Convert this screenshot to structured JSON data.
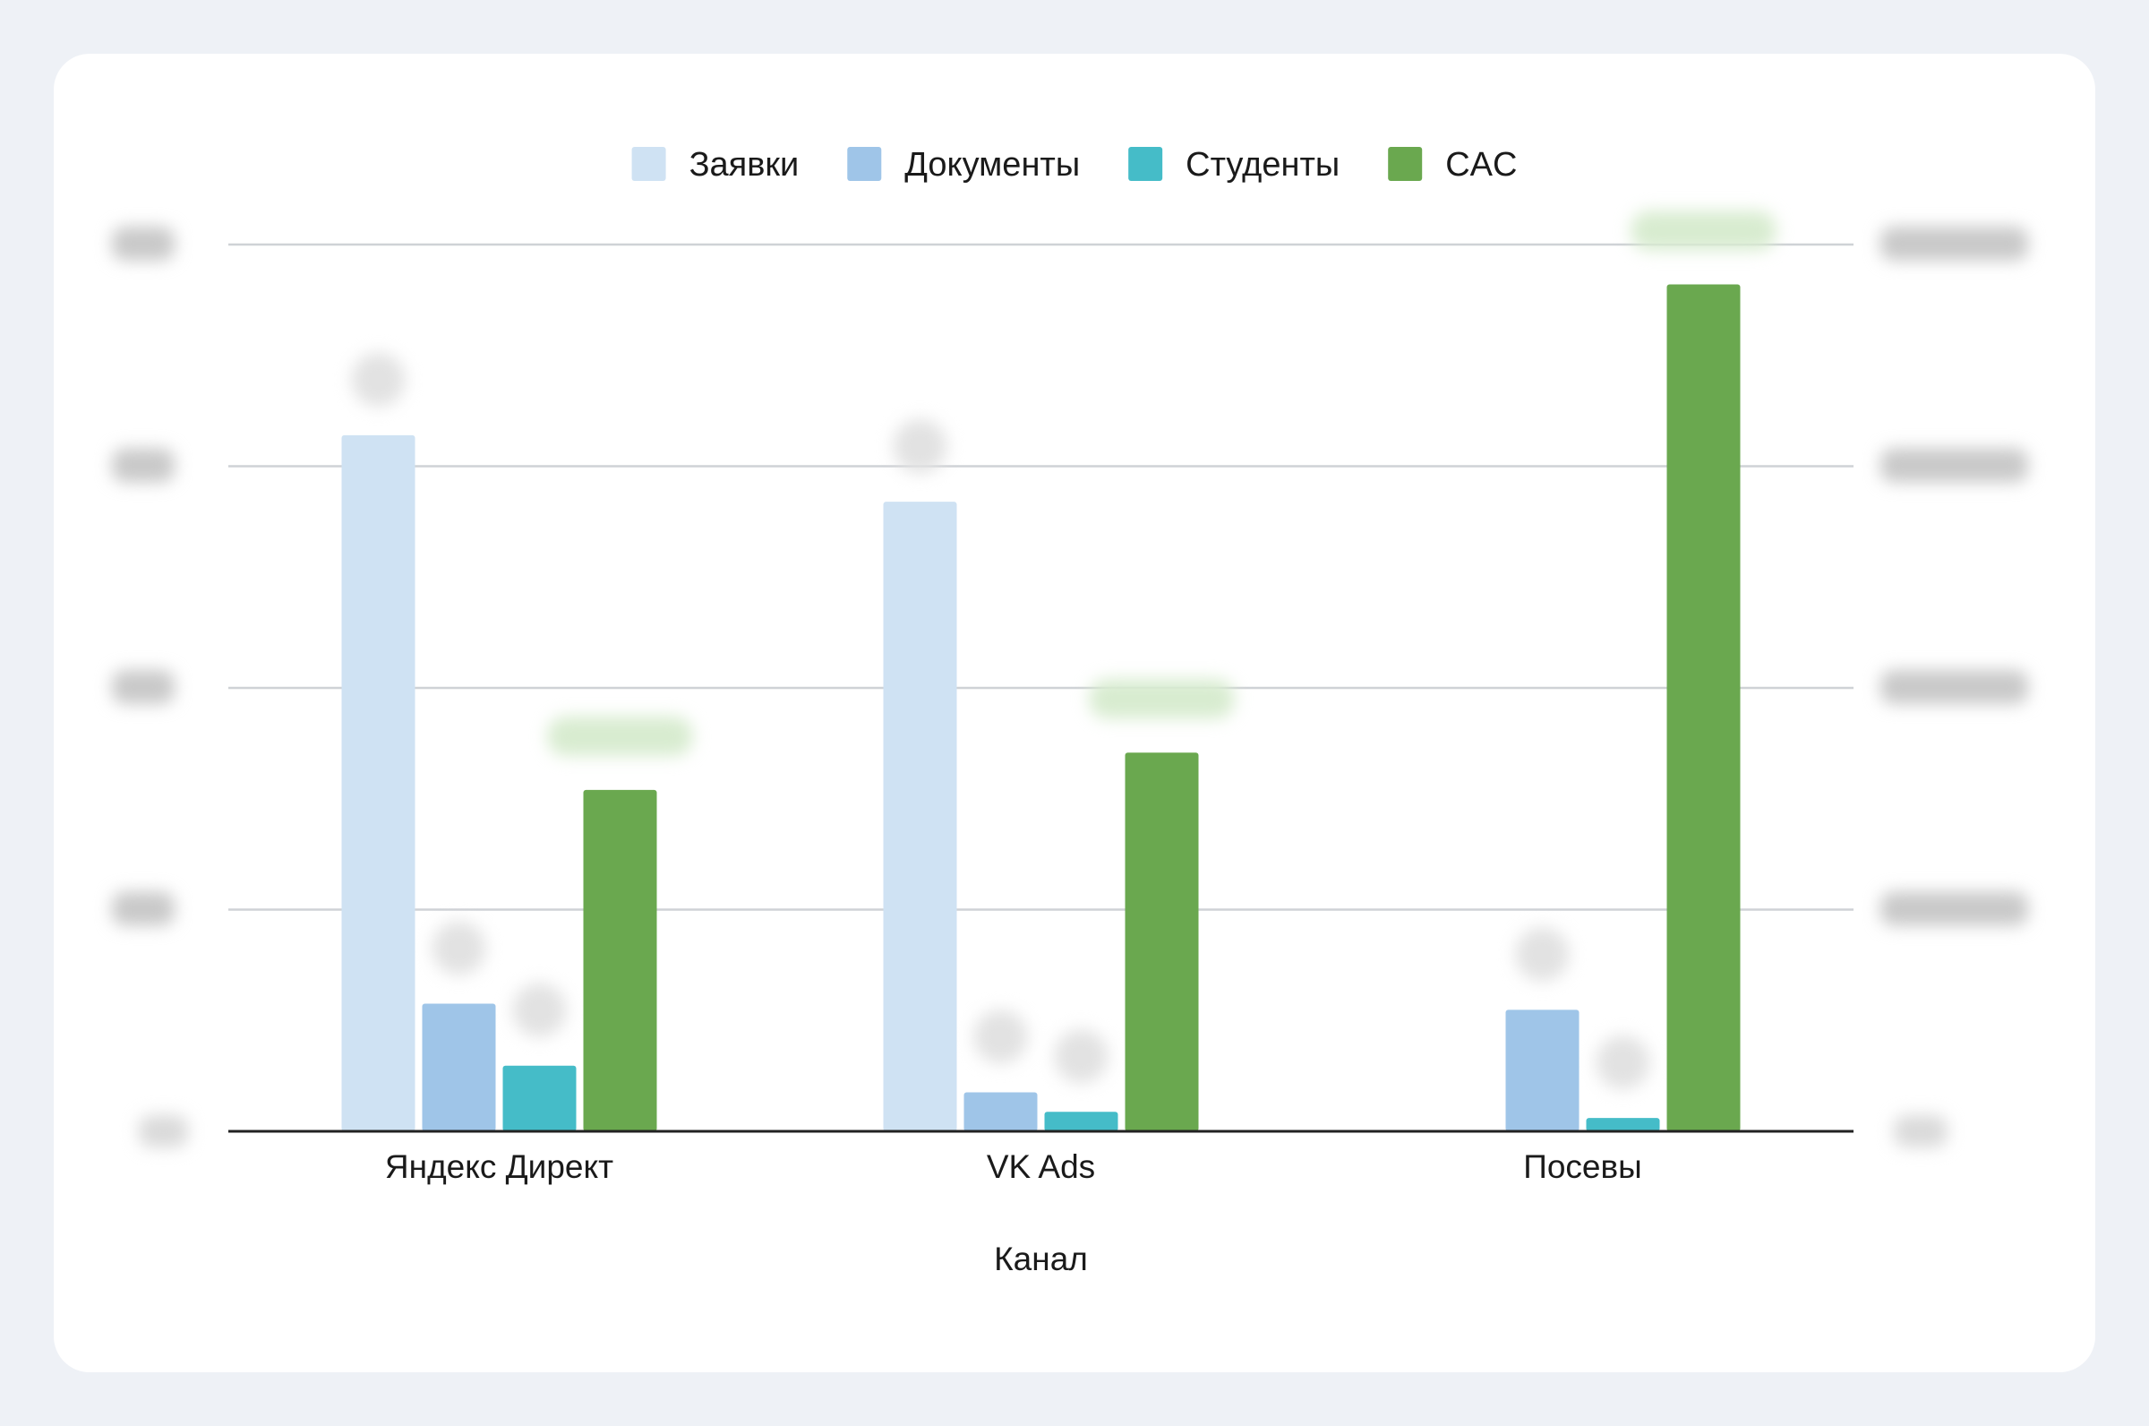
{
  "chart_data": {
    "type": "bar",
    "categories": [
      "Яндекс Директ",
      "VK Ads",
      "Посевы"
    ],
    "xlabel": "Канал",
    "series": [
      {
        "name": "Заявки",
        "axis": "left",
        "values": [
          785,
          710,
          0
        ]
      },
      {
        "name": "Документы",
        "axis": "left",
        "values": [
          144,
          44,
          137
        ]
      },
      {
        "name": "Студенты",
        "axis": "left",
        "values": [
          74,
          22,
          15
        ]
      },
      {
        "name": "CAC",
        "axis": "right",
        "values": [
          0.385,
          0.427,
          0.955
        ]
      }
    ],
    "left_axis": {
      "ylim": [
        0,
        1000
      ],
      "ticks_blurred": true
    },
    "right_axis": {
      "ylim": [
        0,
        1
      ],
      "ticks_blurred": true
    },
    "data_labels_blurred": true,
    "legend": "top",
    "grid": true,
    "colors": {
      "Заявки": "#cfe2f3",
      "Документы": "#9fc5e8",
      "Студенты": "#45bcc8",
      "CAC": "#6aa84f"
    }
  }
}
